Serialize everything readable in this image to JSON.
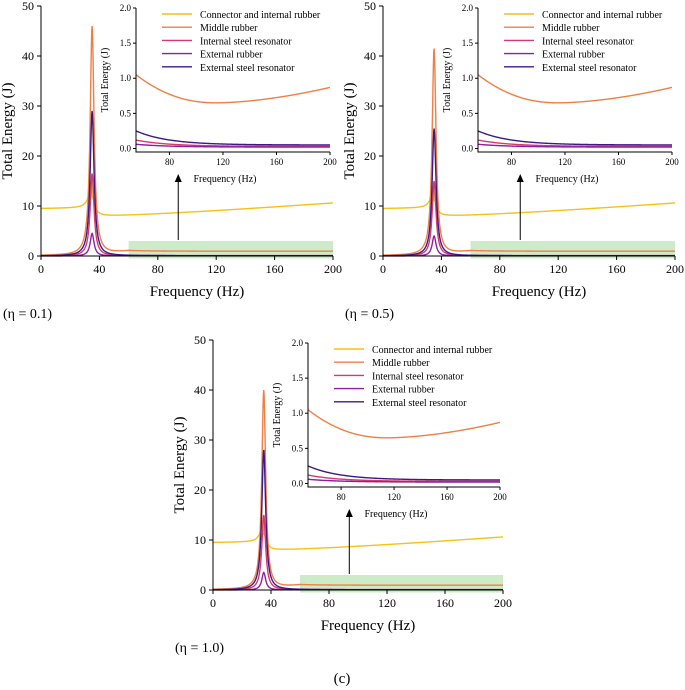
{
  "chart_data": [
    {
      "type": "line",
      "panel_label": "(η = 0.1)",
      "xlabel": "Frequency (Hz)",
      "ylabel": "Total Energy (J)",
      "xlim": [
        0,
        200
      ],
      "ylim": [
        0,
        50
      ],
      "xticks": [
        "0",
        "40",
        "80",
        "120",
        "160",
        "200"
      ],
      "yticks": [
        "0",
        "10",
        "20",
        "30",
        "40",
        "50"
      ],
      "resonance_hz": 35,
      "series": [
        {
          "name": "Connector and internal rubber",
          "color": "#F5C116",
          "base": 9.5,
          "peak": 15.0,
          "slope": 0.021
        },
        {
          "name": "Middle rubber",
          "color": "#F07F45",
          "base": 0.1,
          "peak": 46.0,
          "post": 0.95
        },
        {
          "name": "Internal steel resonator",
          "color": "#D6396A",
          "base": 0.0,
          "peak": 16.5,
          "post": 0.08
        },
        {
          "name": "External rubber",
          "color": "#8E1FA0",
          "base": 0.0,
          "peak": 4.5,
          "post": 0.03
        },
        {
          "name": "External steel resonator",
          "color": "#3C1A86",
          "base": 0.0,
          "peak": 29.0,
          "post": 0.05
        }
      ],
      "inset": {
        "xlabel": "Frequency (Hz)",
        "ylabel": "Total Energy (J)",
        "xlim": [
          55,
          200
        ],
        "ylim": [
          -0.05,
          2.0
        ],
        "xticks": [
          "80",
          "120",
          "160",
          "200"
        ],
        "yticks": [
          "0.0",
          "0.5",
          "1.0",
          "1.5",
          "2.0"
        ],
        "middle_rubber": {
          "start": 1.05,
          "min": 0.65,
          "min_at": 115,
          "end": 0.87
        },
        "small_series": [
          {
            "name": "External steel resonator",
            "start": 0.25,
            "end": 0.05
          },
          {
            "name": "Internal steel resonator",
            "start": 0.12,
            "end": 0.03
          },
          {
            "name": "External rubber",
            "start": 0.06,
            "end": 0.02
          }
        ]
      }
    },
    {
      "type": "line",
      "panel_label": "(η = 0.5)",
      "xlabel": "Frequency (Hz)",
      "ylabel": "Total Energy (J)",
      "xlim": [
        0,
        200
      ],
      "ylim": [
        0,
        50
      ],
      "xticks": [
        "0",
        "40",
        "80",
        "120",
        "160",
        "200"
      ],
      "yticks": [
        "0",
        "10",
        "20",
        "30",
        "40",
        "50"
      ],
      "resonance_hz": 35,
      "series": [
        {
          "name": "Connector and internal rubber",
          "color": "#F5C116",
          "base": 9.5,
          "peak": 14.0,
          "slope": 0.021
        },
        {
          "name": "Middle rubber",
          "color": "#F07F45",
          "base": 0.1,
          "peak": 41.5,
          "post": 0.95
        },
        {
          "name": "Internal steel resonator",
          "color": "#D6396A",
          "base": 0.0,
          "peak": 15.0,
          "post": 0.08
        },
        {
          "name": "External rubber",
          "color": "#8E1FA0",
          "base": 0.0,
          "peak": 4.0,
          "post": 0.03
        },
        {
          "name": "External steel resonator",
          "color": "#3C1A86",
          "base": 0.0,
          "peak": 25.5,
          "post": 0.05
        }
      ],
      "inset": {
        "xlabel": "Frequency (Hz)",
        "ylabel": "Total Energy (J)",
        "xlim": [
          55,
          200
        ],
        "ylim": [
          -0.05,
          2.0
        ],
        "xticks": [
          "80",
          "120",
          "160",
          "200"
        ],
        "yticks": [
          "0.0",
          "0.5",
          "1.0",
          "1.5",
          "2.0"
        ],
        "middle_rubber": {
          "start": 1.05,
          "min": 0.65,
          "min_at": 115,
          "end": 0.87
        },
        "small_series": [
          {
            "name": "External steel resonator",
            "start": 0.25,
            "end": 0.05
          },
          {
            "name": "Internal steel resonator",
            "start": 0.12,
            "end": 0.03
          },
          {
            "name": "External rubber",
            "start": 0.06,
            "end": 0.02
          }
        ]
      }
    },
    {
      "type": "line",
      "panel_label": "(η = 1.0)",
      "xlabel": "Frequency (Hz)",
      "ylabel": "Total Energy (J)",
      "xlim": [
        0,
        200
      ],
      "ylim": [
        0,
        50
      ],
      "xticks": [
        "0",
        "40",
        "80",
        "120",
        "160",
        "200"
      ],
      "yticks": [
        "0",
        "10",
        "20",
        "30",
        "40",
        "50"
      ],
      "resonance_hz": 35,
      "series": [
        {
          "name": "Connector and internal rubber",
          "color": "#F5C116",
          "base": 9.5,
          "peak": 14.0,
          "slope": 0.021
        },
        {
          "name": "Middle rubber",
          "color": "#F07F45",
          "base": 0.1,
          "peak": 40.0,
          "post": 0.95
        },
        {
          "name": "Internal steel resonator",
          "color": "#D6396A",
          "base": 0.0,
          "peak": 15.0,
          "post": 0.08
        },
        {
          "name": "External rubber",
          "color": "#8E1FA0",
          "base": 0.0,
          "peak": 3.5,
          "post": 0.03
        },
        {
          "name": "External steel resonator",
          "color": "#3C1A86",
          "base": 0.0,
          "peak": 28.0,
          "post": 0.05
        }
      ],
      "inset": {
        "xlabel": "Frequency (Hz)",
        "ylabel": "Total Energy (J)",
        "xlim": [
          55,
          200
        ],
        "ylim": [
          -0.05,
          2.0
        ],
        "xticks": [
          "80",
          "120",
          "160",
          "200"
        ],
        "yticks": [
          "0.0",
          "0.5",
          "1.0",
          "1.5",
          "2.0"
        ],
        "middle_rubber": {
          "start": 1.05,
          "min": 0.65,
          "min_at": 115,
          "end": 0.87
        },
        "small_series": [
          {
            "name": "External steel resonator",
            "start": 0.25,
            "end": 0.05
          },
          {
            "name": "Internal steel resonator",
            "start": 0.12,
            "end": 0.03
          },
          {
            "name": "External rubber",
            "start": 0.06,
            "end": 0.02
          }
        ]
      }
    }
  ],
  "figure_caption": "(c)",
  "colors": {
    "highlight_box": "#CDEBC9",
    "axis": "#000000",
    "small_series": [
      "#3C1A86",
      "#D6396A",
      "#8E1FA0"
    ]
  }
}
